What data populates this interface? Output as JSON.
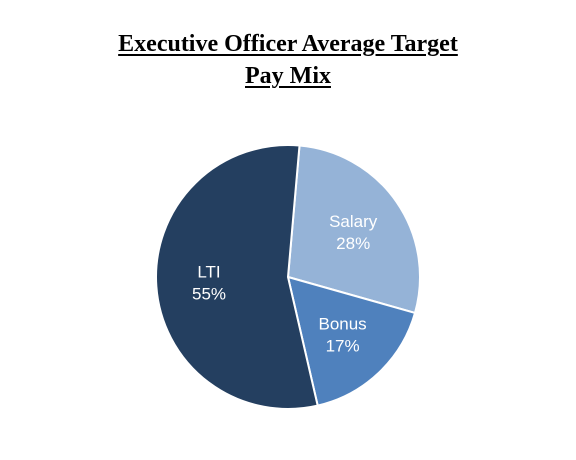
{
  "chart_data": {
    "type": "pie",
    "title_lines": [
      "Executive Officer Average Target",
      "Pay Mix"
    ],
    "slices": [
      {
        "label": "Salary",
        "value": 28,
        "value_label": "28%",
        "color": "#95b3d7"
      },
      {
        "label": "Bonus",
        "value": 17,
        "value_label": "17%",
        "color": "#4f81bd"
      },
      {
        "label": "LTI",
        "value": 55,
        "value_label": "55%",
        "color": "#243f60"
      }
    ],
    "start_angle_deg": 5,
    "direction": "clockwise",
    "edge_color": "#ffffff",
    "legend": "none"
  }
}
